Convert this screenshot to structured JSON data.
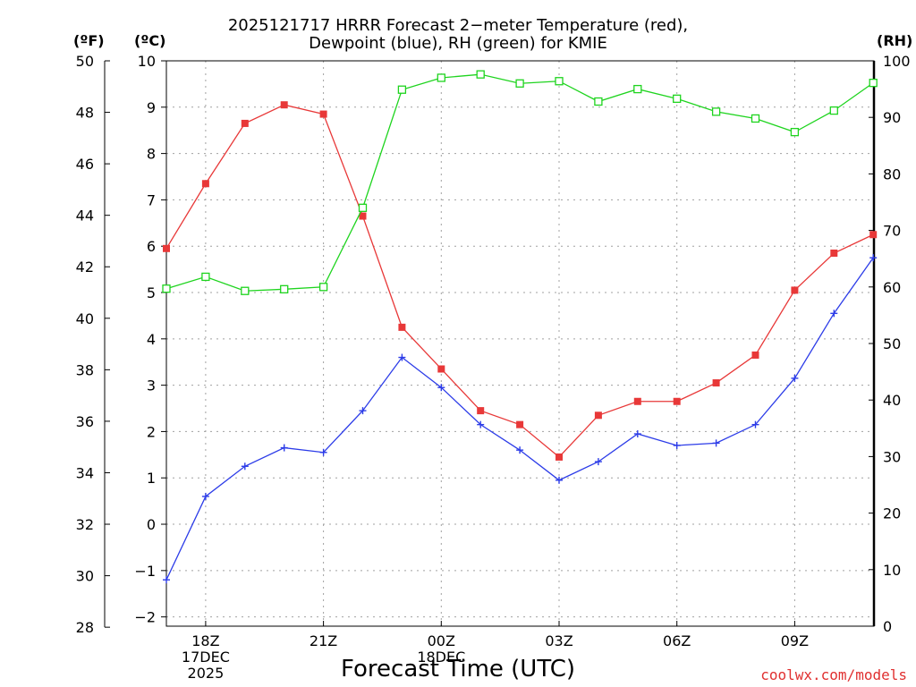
{
  "title": {
    "line1": "2025121717 HRRR Forecast 2−meter Temperature (red),",
    "line2": "Dewpoint (blue), RH (green) for KMIE"
  },
  "units": {
    "fahrenheit": "(ºF)",
    "celsius": "(ºC)",
    "rh": "(RH)"
  },
  "x_axis_label": "Forecast Time (UTC)",
  "credit": "coolwx.com/models",
  "colors": {
    "temperature": "#e83838",
    "dewpoint": "#2c3ce8",
    "rh": "#1ed41e",
    "grid": "#a0a0a0"
  },
  "chart_data": {
    "type": "line",
    "x": [
      "17Z",
      "18Z",
      "19Z",
      "20Z",
      "21Z",
      "22Z",
      "23Z",
      "00Z",
      "01Z",
      "02Z",
      "03Z",
      "04Z",
      "05Z",
      "06Z",
      "07Z",
      "08Z",
      "09Z",
      "10Z",
      "11Z"
    ],
    "x_tick_labels": [
      {
        "x": "18Z",
        "lines": [
          "18Z",
          "17DEC",
          "2025"
        ]
      },
      {
        "x": "21Z",
        "lines": [
          "21Z"
        ]
      },
      {
        "x": "00Z",
        "lines": [
          "00Z",
          "18DEC"
        ]
      },
      {
        "x": "03Z",
        "lines": [
          "03Z"
        ]
      },
      {
        "x": "06Z",
        "lines": [
          "06Z"
        ]
      },
      {
        "x": "09Z",
        "lines": [
          "09Z"
        ]
      }
    ],
    "celsius_axis": {
      "ylim": [
        -2.2,
        10.0
      ],
      "ticks": [
        -2,
        -1,
        0,
        1,
        2,
        3,
        4,
        5,
        6,
        7,
        8,
        9,
        10
      ]
    },
    "fahrenheit_axis": {
      "ticks": [
        28,
        30,
        32,
        34,
        36,
        38,
        40,
        42,
        44,
        46,
        48,
        50
      ]
    },
    "rh_axis": {
      "ylim": [
        0,
        100
      ],
      "ticks": [
        0,
        10,
        20,
        30,
        40,
        50,
        60,
        70,
        80,
        90,
        100
      ]
    },
    "grid": true,
    "series": [
      {
        "name": "Temperature",
        "color": "#e83838",
        "axis": "celsius",
        "marker": "filled-square",
        "values": [
          5.95,
          7.35,
          8.65,
          9.05,
          8.85,
          6.65,
          4.25,
          3.35,
          2.45,
          2.15,
          1.45,
          2.35,
          2.65,
          2.65,
          3.05,
          3.65,
          5.05,
          5.85,
          6.25
        ]
      },
      {
        "name": "Dewpoint",
        "color": "#2c3ce8",
        "axis": "celsius",
        "marker": "plus",
        "values": [
          -1.2,
          0.6,
          1.25,
          1.65,
          1.55,
          2.45,
          3.6,
          2.95,
          2.15,
          1.6,
          0.95,
          1.35,
          1.95,
          1.7,
          1.75,
          2.15,
          3.15,
          4.55,
          5.75
        ]
      },
      {
        "name": "RH",
        "color": "#1ed41e",
        "axis": "rh",
        "marker": "open-square",
        "values": [
          59.7,
          61.8,
          59.3,
          59.6,
          60.0,
          74.0,
          94.9,
          97.0,
          97.6,
          96.0,
          96.4,
          92.8,
          95.0,
          93.3,
          91.0,
          89.8,
          87.4,
          91.2,
          96.1
        ]
      }
    ]
  }
}
